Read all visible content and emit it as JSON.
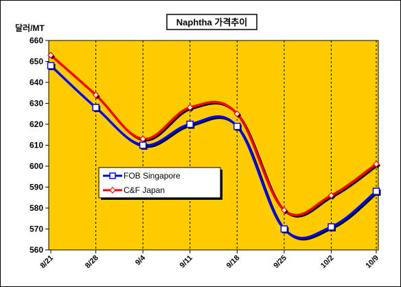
{
  "chart_data": {
    "type": "line",
    "title": "Naphtha 가격추이",
    "ylabel": "달러/MT",
    "xlabel": "",
    "categories": [
      "8/21",
      "8/28",
      "9/4",
      "9/11",
      "9/18",
      "9/25",
      "10/2",
      "10/9"
    ],
    "ylim": [
      560,
      660
    ],
    "yticks": [
      560,
      570,
      580,
      590,
      600,
      610,
      620,
      630,
      640,
      650,
      660
    ],
    "grid": "vertical",
    "legend_position": "center-left",
    "background_color": "#FFCC00",
    "series": [
      {
        "name": "FOB Singapore",
        "values": [
          648,
          628,
          610,
          620,
          619,
          570,
          571,
          588
        ],
        "color": "#0000FF",
        "marker": "square"
      },
      {
        "name": "C&F Japan",
        "values": [
          653,
          634,
          613,
          628,
          625,
          579,
          586,
          601
        ],
        "color": "#FF0000",
        "marker": "diamond"
      }
    ]
  }
}
